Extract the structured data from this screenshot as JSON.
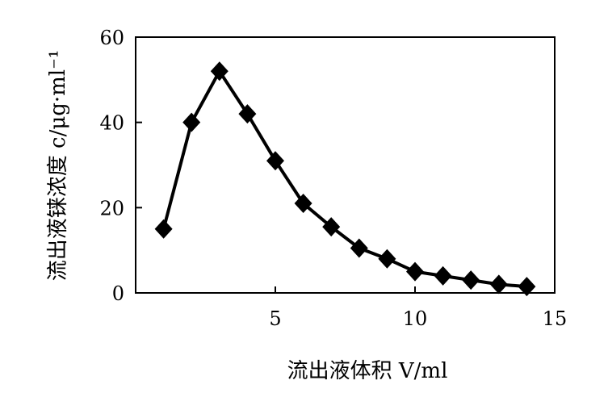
{
  "chart_data": {
    "type": "line",
    "title": "",
    "xlabel": "流出液体积 V/ml",
    "ylabel": "流出液铼浓度 c/μg·ml⁻¹",
    "xlim": [
      0,
      15
    ],
    "ylim": [
      0,
      60
    ],
    "x_ticks": [
      "5",
      "10",
      "15"
    ],
    "y_ticks": [
      "0",
      "20",
      "40",
      "60"
    ],
    "grid": false,
    "legend": "none",
    "marker": "diamond",
    "line_color": "#000000",
    "series": [
      {
        "x": [
          1,
          2,
          3,
          4,
          5,
          6,
          7,
          8,
          9,
          10,
          11,
          12,
          13,
          14
        ],
        "values": [
          15,
          40,
          52,
          42,
          31,
          21,
          15.5,
          10.5,
          8,
          5,
          4,
          3,
          2,
          1.5
        ]
      }
    ]
  }
}
